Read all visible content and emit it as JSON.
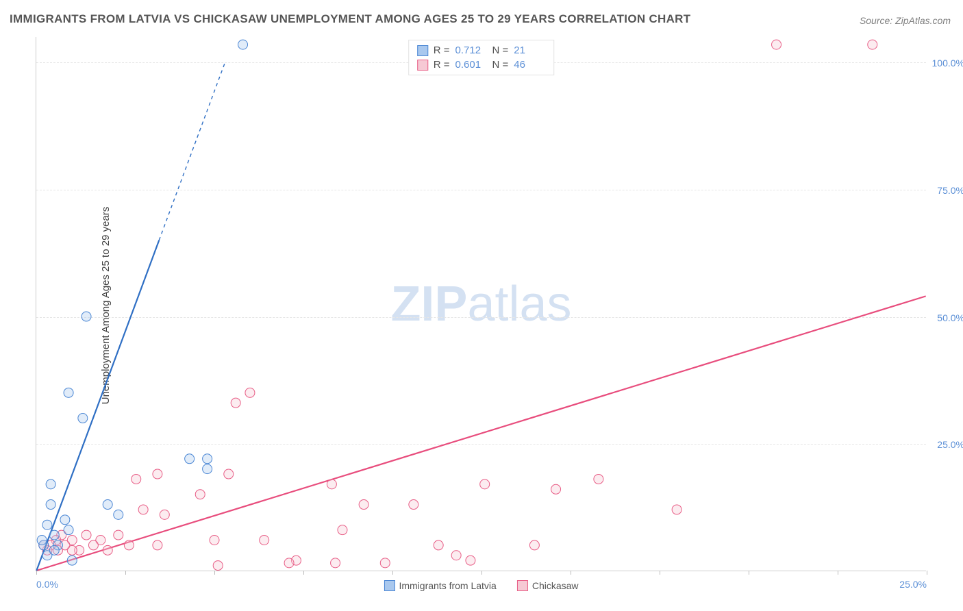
{
  "title": "IMMIGRANTS FROM LATVIA VS CHICKASAW UNEMPLOYMENT AMONG AGES 25 TO 29 YEARS CORRELATION CHART",
  "source": "Source: ZipAtlas.com",
  "ylabel": "Unemployment Among Ages 25 to 29 years",
  "watermark_a": "ZIP",
  "watermark_b": "atlas",
  "chart": {
    "type": "scatter-correlation",
    "background_color": "#ffffff",
    "grid_color": "#e6e6e6",
    "axis_color": "#cccccc",
    "text_color": "#555555",
    "tick_label_color": "#5b8fd6",
    "title_fontsize": 17,
    "label_fontsize": 15,
    "tick_fontsize": 14,
    "xlim": [
      0,
      25
    ],
    "ylim": [
      0,
      105
    ],
    "ytick_step": 25,
    "xtick_step": 2.5,
    "xtick_labels": {
      "0": "0.0%",
      "25": "25.0%"
    },
    "ytick_labels": {
      "25": "25.0%",
      "50": "50.0%",
      "75": "75.0%",
      "100": "100.0%"
    },
    "marker_radius": 7,
    "marker_opacity": 0.35,
    "line_width": 2.2
  },
  "series": {
    "blue": {
      "label": "Immigrants from Latvia",
      "fill": "#a9c8ee",
      "stroke": "#4a86d4",
      "line_color": "#2f6fc4",
      "r": "0.712",
      "n": "21",
      "trend": {
        "x1": 0,
        "y1": 0,
        "x2": 5.3,
        "y2": 100,
        "dash_from_y": 65
      },
      "points": [
        [
          5.8,
          103.5
        ],
        [
          1.4,
          50
        ],
        [
          0.9,
          35
        ],
        [
          1.3,
          30
        ],
        [
          0.4,
          17
        ],
        [
          4.3,
          22
        ],
        [
          4.8,
          22
        ],
        [
          4.8,
          20
        ],
        [
          2.0,
          13
        ],
        [
          2.3,
          11
        ],
        [
          0.4,
          13
        ],
        [
          0.8,
          10
        ],
        [
          0.3,
          9
        ],
        [
          0.9,
          8
        ],
        [
          0.5,
          7
        ],
        [
          0.2,
          5
        ],
        [
          0.15,
          6
        ],
        [
          0.6,
          5
        ],
        [
          1.0,
          2
        ],
        [
          0.3,
          3
        ],
        [
          0.5,
          4
        ]
      ]
    },
    "pink": {
      "label": "Chickasaw",
      "fill": "#f6c9d4",
      "stroke": "#e85d86",
      "line_color": "#e84d7d",
      "r": "0.601",
      "n": "46",
      "trend": {
        "x1": 0,
        "y1": 0,
        "x2": 25,
        "y2": 54
      },
      "points": [
        [
          20.8,
          103.5
        ],
        [
          23.5,
          103.5
        ],
        [
          18.0,
          12
        ],
        [
          15.8,
          18
        ],
        [
          14.6,
          16
        ],
        [
          12.6,
          17
        ],
        [
          14.0,
          5
        ],
        [
          12.2,
          2
        ],
        [
          11.3,
          5
        ],
        [
          11.8,
          3
        ],
        [
          10.6,
          13
        ],
        [
          9.8,
          1.5
        ],
        [
          9.2,
          13
        ],
        [
          8.6,
          8
        ],
        [
          8.3,
          17
        ],
        [
          8.4,
          1.5
        ],
        [
          7.3,
          2
        ],
        [
          7.1,
          1.5
        ],
        [
          6.4,
          6
        ],
        [
          6.0,
          35
        ],
        [
          5.6,
          33
        ],
        [
          5.4,
          19
        ],
        [
          5.0,
          6
        ],
        [
          5.1,
          1
        ],
        [
          4.6,
          15
        ],
        [
          3.6,
          11
        ],
        [
          3.4,
          5
        ],
        [
          3.4,
          19
        ],
        [
          3.0,
          12
        ],
        [
          2.8,
          18
        ],
        [
          2.6,
          5
        ],
        [
          2.3,
          7
        ],
        [
          2.0,
          4
        ],
        [
          1.8,
          6
        ],
        [
          1.6,
          5
        ],
        [
          1.4,
          7
        ],
        [
          1.2,
          4
        ],
        [
          1.0,
          6
        ],
        [
          1.0,
          4
        ],
        [
          0.8,
          5
        ],
        [
          0.7,
          7
        ],
        [
          0.6,
          4
        ],
        [
          0.55,
          6
        ],
        [
          0.4,
          5
        ],
        [
          0.3,
          4
        ],
        [
          0.2,
          5
        ]
      ]
    }
  },
  "legend_top": {
    "r_label": "R =",
    "n_label": "N ="
  }
}
